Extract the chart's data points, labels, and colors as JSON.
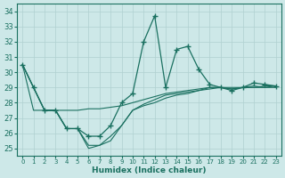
{
  "xlabel": "Humidex (Indice chaleur)",
  "bg_color": "#cde8e8",
  "grid_color": "#b0d0d0",
  "line_color": "#1a7060",
  "xlim": [
    -0.5,
    23.5
  ],
  "ylim": [
    24.5,
    34.5
  ],
  "yticks": [
    25,
    26,
    27,
    28,
    29,
    30,
    31,
    32,
    33,
    34
  ],
  "xticks": [
    0,
    1,
    2,
    3,
    4,
    5,
    6,
    7,
    8,
    9,
    10,
    11,
    12,
    13,
    14,
    15,
    16,
    17,
    18,
    19,
    20,
    21,
    22,
    23
  ],
  "series_main": [
    30.5,
    29.0,
    27.5,
    27.5,
    26.3,
    26.3,
    25.8,
    25.8,
    26.5,
    28.0,
    28.6,
    32.0,
    33.7,
    29.0,
    31.5,
    31.7,
    30.2,
    29.2,
    29.0,
    28.8,
    29.0,
    29.3,
    29.2,
    29.1
  ],
  "series_a": [
    30.5,
    27.5,
    27.5,
    27.5,
    27.5,
    27.5,
    27.6,
    27.6,
    27.7,
    27.8,
    28.0,
    28.2,
    28.4,
    28.6,
    28.7,
    28.8,
    28.9,
    29.0,
    29.0,
    29.0,
    29.0,
    29.0,
    29.1,
    29.1
  ],
  "series_b": [
    30.5,
    29.0,
    27.5,
    27.5,
    26.3,
    26.3,
    25.0,
    25.2,
    25.5,
    26.5,
    27.5,
    27.8,
    28.0,
    28.3,
    28.5,
    28.6,
    28.8,
    28.9,
    29.0,
    28.9,
    29.0,
    29.0,
    29.0,
    29.0
  ],
  "series_c": [
    30.5,
    29.0,
    27.5,
    27.5,
    26.3,
    26.3,
    25.2,
    25.2,
    25.8,
    26.5,
    27.5,
    27.9,
    28.2,
    28.5,
    28.6,
    28.7,
    28.8,
    29.0,
    29.0,
    28.9,
    29.0,
    29.1,
    29.0,
    29.1
  ]
}
